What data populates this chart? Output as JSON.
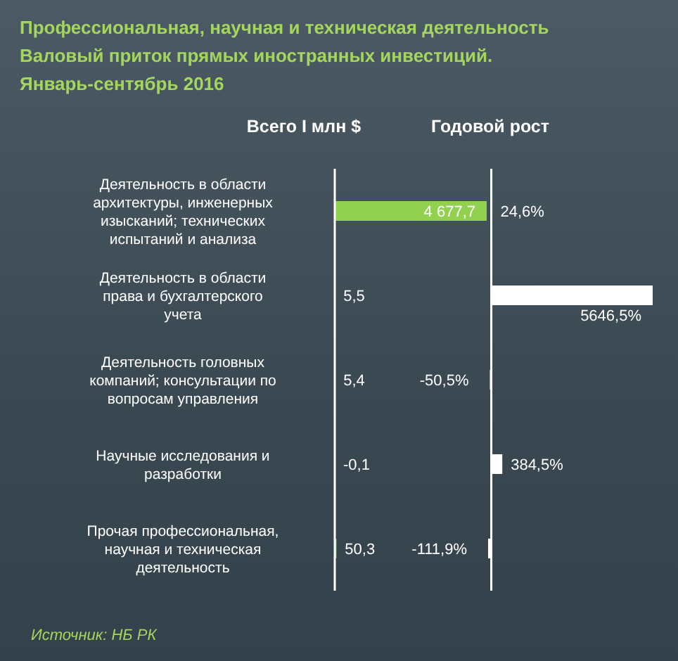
{
  "chart_data": [
    {
      "type": "bar",
      "orientation": "horizontal",
      "title": "Профессиональная, научная и техническая деятельность",
      "subtitle": "Валовый приток прямых иностранных инвестиций. Январь-сентябрь 2016",
      "xlabel": "Всего I млн $",
      "categories": [
        "Деятельность в области архитектуры, инженерных изысканий; технических испытаний и анализа",
        "Деятельность в области права и бухгалтерского учета",
        "Деятельность головных компаний; консультации по вопросам управления",
        "Научные исследования и разработки",
        "Прочая профессиональная, научная и техническая деятельность"
      ],
      "values": [
        4677.7,
        5.5,
        5.4,
        -0.1,
        50.3
      ],
      "value_labels": [
        "4 677,7",
        "5,5",
        "5,4",
        "-0,1",
        "50,3"
      ],
      "color": "#92d050",
      "annotations": [
        "Источник: НБ РК"
      ]
    },
    {
      "type": "bar",
      "orientation": "horizontal",
      "xlabel": "Годовой рост",
      "categories": [
        null,
        null,
        null,
        null,
        null
      ],
      "values": [
        24.6,
        5646.5,
        -50.5,
        384.5,
        -111.9
      ],
      "value_labels": [
        "24,6%",
        "5646,5%",
        "-50,5%",
        "384,5%",
        "-111,9%"
      ],
      "color": "#ffffff"
    }
  ]
}
